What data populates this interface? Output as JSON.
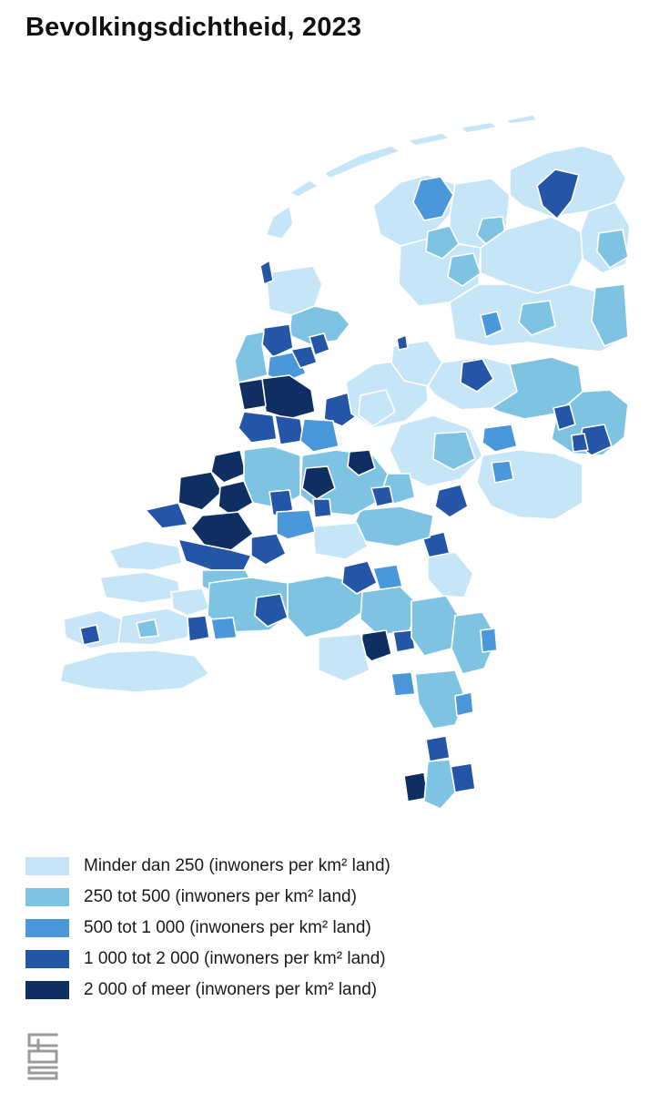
{
  "title": "Bevolkingsdichtheid, 2023",
  "colors": {
    "background": "#ffffff",
    "border": "#ffffff",
    "class_1": "#c6e6f7",
    "class_2": "#7fc3e3",
    "class_3": "#4a97da",
    "class_4": "#2455a6",
    "class_5": "#0f2f63"
  },
  "legend": [
    {
      "label": "Minder dan 250 (inwoners per km² land)",
      "color": "#c6e6f7"
    },
    {
      "label": "250 tot 500 (inwoners per km² land)",
      "color": "#7fc3e3"
    },
    {
      "label": "500 tot 1 000 (inwoners per km² land)",
      "color": "#4a97da"
    },
    {
      "label": "1 000 tot 2 000 (inwoners per km² land)",
      "color": "#2455a6"
    },
    {
      "label": "2 000 of meer (inwoners per km² land)",
      "color": "#0f2f63"
    }
  ],
  "logo": {
    "icon": "cbs-logo-icon"
  }
}
